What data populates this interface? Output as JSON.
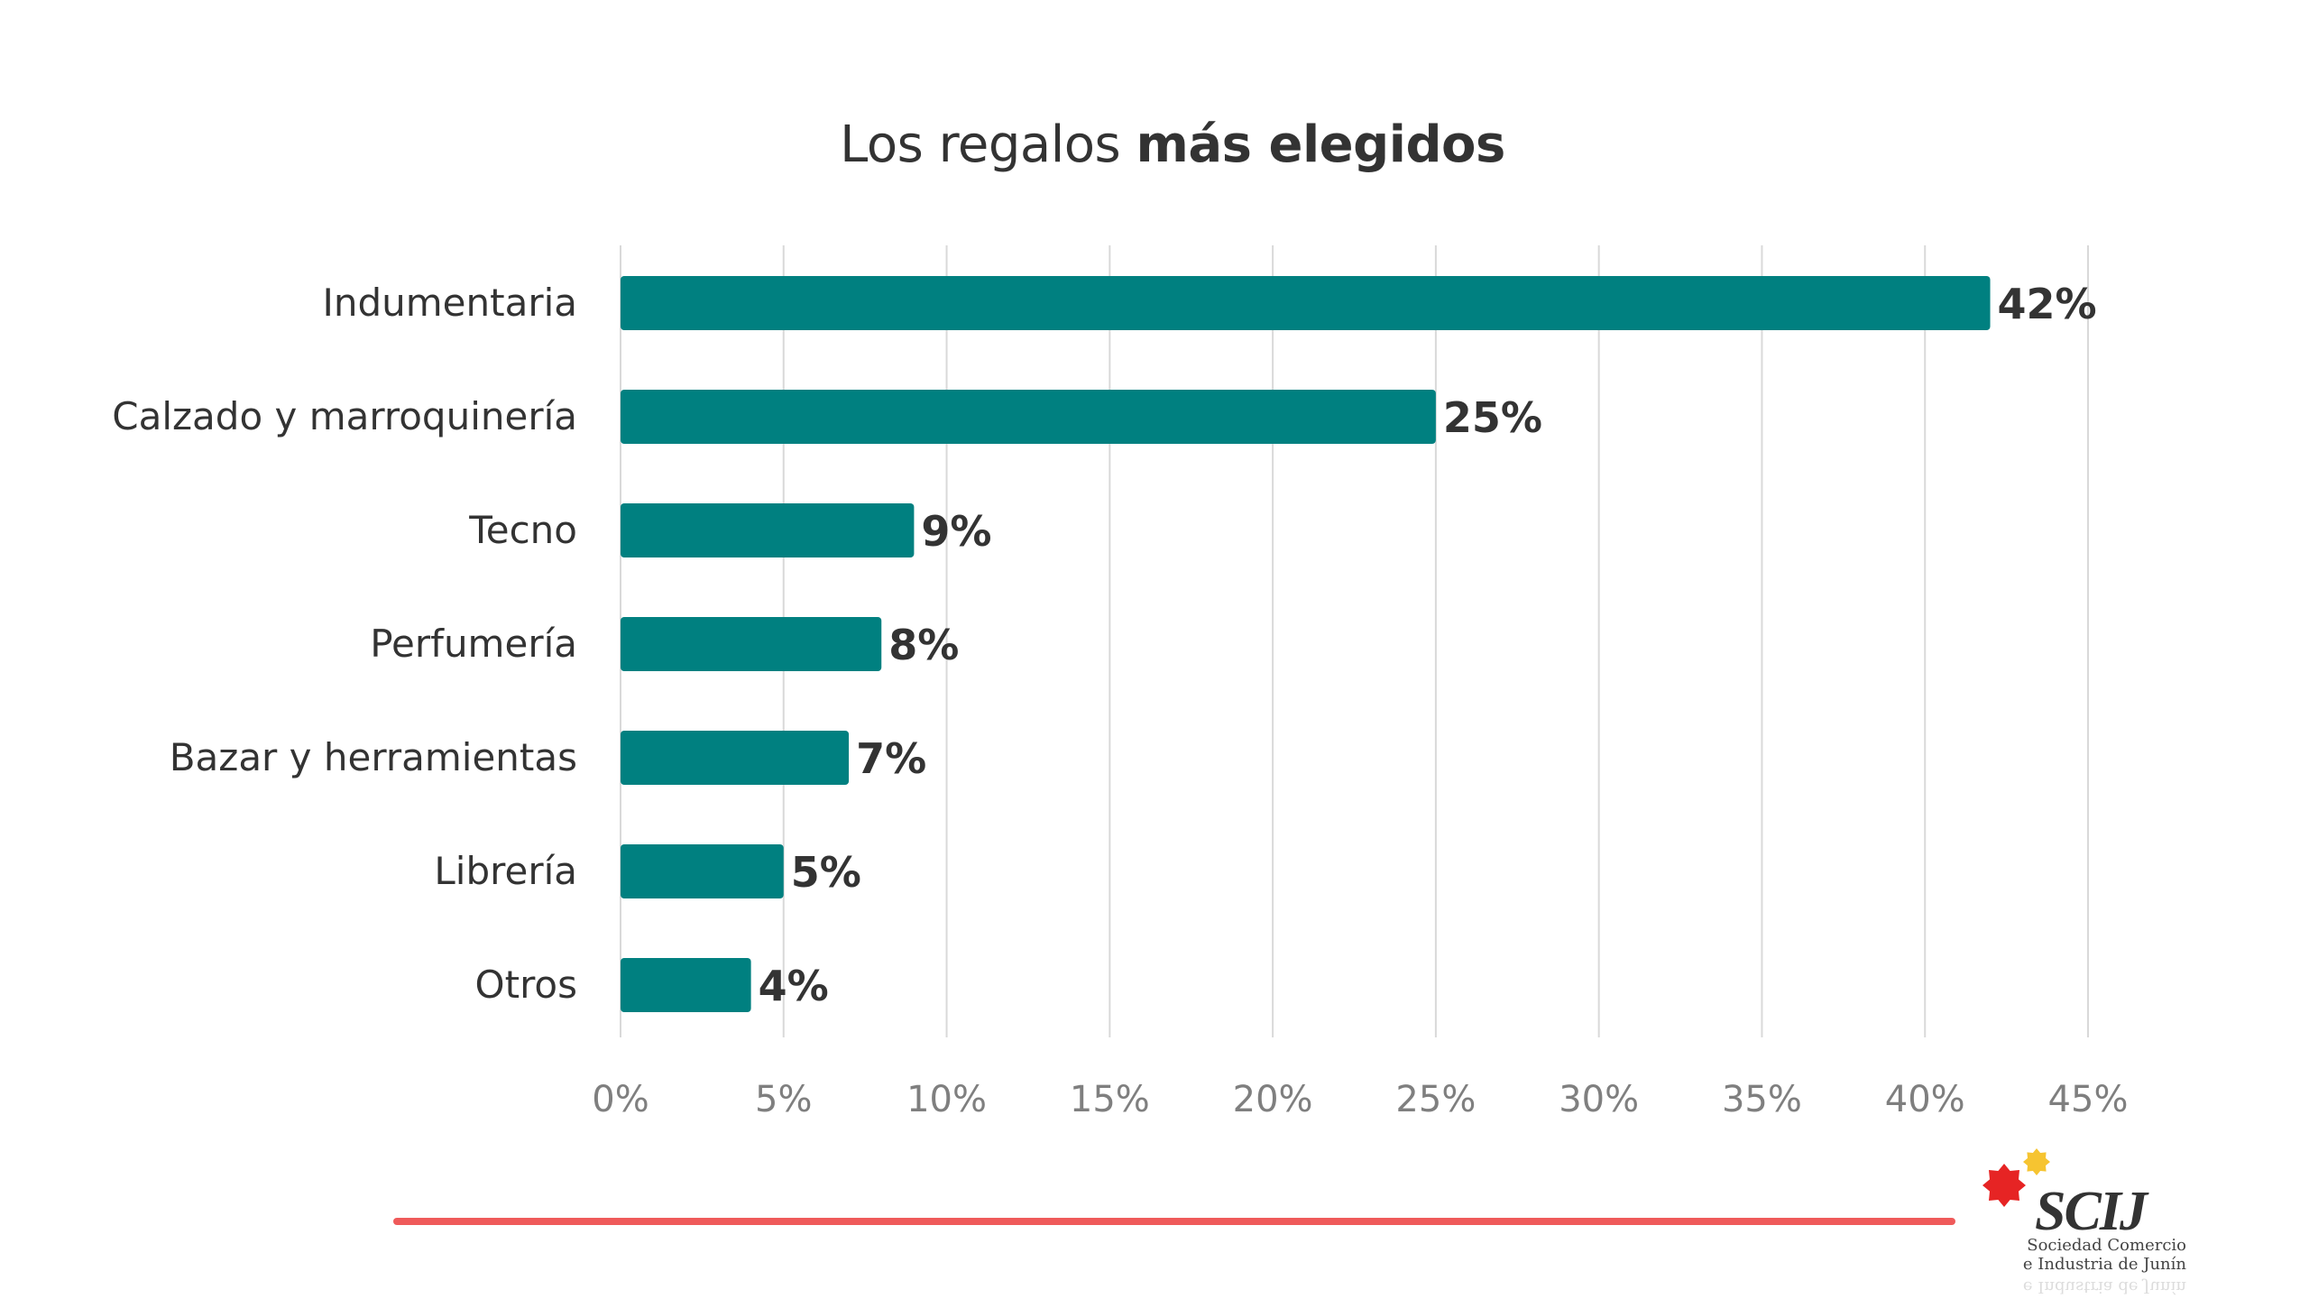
{
  "colors": {
    "bar": "#008080",
    "grid": "#d9d9d9",
    "footer_line": "#ef5a5a",
    "logo_red": "#e62424",
    "logo_yellow": "#f6c431"
  },
  "chart_data": {
    "type": "bar",
    "orientation": "horizontal",
    "title": "Los regalos más elegidos",
    "title_parts": {
      "regular": "Los regalos ",
      "bold": "más elegidos"
    },
    "xlabel": "",
    "ylabel": "",
    "categories": [
      "Indumentaria",
      "Calzado y marroquinería",
      "Tecno",
      "Perfumería",
      "Bazar y herramientas",
      "Librería",
      "Otros"
    ],
    "values": [
      42,
      25,
      9,
      8,
      7,
      5,
      4
    ],
    "data_labels": [
      "42%",
      "25%",
      "9%",
      "8%",
      "7%",
      "5%",
      "4%"
    ],
    "xlim": [
      0,
      45
    ],
    "x_ticks": [
      0,
      5,
      10,
      15,
      20,
      25,
      30,
      35,
      40,
      45
    ],
    "x_tick_labels": [
      "0%",
      "5%",
      "10%",
      "15%",
      "20%",
      "25%",
      "30%",
      "35%",
      "40%",
      "45%"
    ],
    "grid": "vertical",
    "legend": "none"
  },
  "logo": {
    "mark": "SCIJ",
    "line1": "Sociedad Comercio",
    "line2": "e Industria de Junín"
  }
}
